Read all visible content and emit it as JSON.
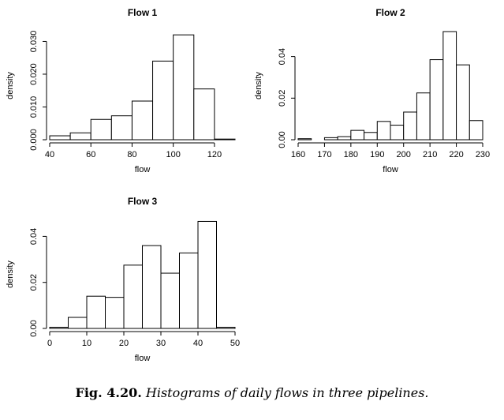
{
  "chart_data": [
    {
      "type": "bar",
      "title": "Flow 1",
      "xlabel": "flow",
      "ylabel": "density",
      "bin_edges": [
        40,
        50,
        60,
        70,
        80,
        90,
        100,
        110,
        120,
        130
      ],
      "values": [
        0.0012,
        0.0021,
        0.0062,
        0.0073,
        0.0118,
        0.024,
        0.032,
        0.0155,
        0.0002
      ],
      "xlim": [
        40,
        130
      ],
      "ylim": [
        0,
        0.033
      ],
      "xticks": [
        40,
        60,
        80,
        100,
        120
      ],
      "xtick_labels": [
        "40",
        "60",
        "80",
        "100",
        "120"
      ],
      "yticks": [
        0,
        0.01,
        0.02,
        0.03
      ],
      "ytick_labels": [
        "0.000",
        "0.010",
        "0.020",
        "0.030"
      ]
    },
    {
      "type": "bar",
      "title": "Flow 2",
      "xlabel": "flow",
      "ylabel": "density",
      "bin_edges": [
        160,
        165,
        170,
        175,
        180,
        185,
        190,
        195,
        200,
        205,
        210,
        215,
        220,
        225,
        230
      ],
      "values": [
        0.0005,
        0,
        0.001,
        0.0015,
        0.0045,
        0.0035,
        0.0088,
        0.007,
        0.0133,
        0.0225,
        0.0385,
        0.052,
        0.036,
        0.0092
      ],
      "xlim": [
        160,
        230
      ],
      "ylim": [
        0,
        0.052
      ],
      "xticks": [
        160,
        170,
        180,
        190,
        200,
        210,
        220,
        230
      ],
      "xtick_labels": [
        "160",
        "170",
        "180",
        "190",
        "200",
        "210",
        "220",
        "230"
      ],
      "yticks": [
        0,
        0.02,
        0.04
      ],
      "ytick_labels": [
        "0.00",
        "0.02",
        "0.04"
      ]
    },
    {
      "type": "bar",
      "title": "Flow 3",
      "xlabel": "flow",
      "ylabel": "density",
      "bin_edges": [
        0,
        5,
        10,
        15,
        20,
        25,
        30,
        35,
        40,
        45,
        50
      ],
      "values": [
        0.0005,
        0.0048,
        0.014,
        0.0135,
        0.0275,
        0.036,
        0.024,
        0.0328,
        0.0465,
        0.0005
      ],
      "xlim": [
        0,
        50
      ],
      "ylim": [
        0,
        0.047
      ],
      "xticks": [
        0,
        10,
        20,
        30,
        40,
        50
      ],
      "xtick_labels": [
        "0",
        "10",
        "20",
        "30",
        "40",
        "50"
      ],
      "yticks": [
        0,
        0.02,
        0.04
      ],
      "ytick_labels": [
        "0.00",
        "0.02",
        "0.04"
      ]
    }
  ],
  "caption": {
    "label": "Fig. 4.20.",
    "text": "Histograms of daily flows in three pipelines."
  }
}
